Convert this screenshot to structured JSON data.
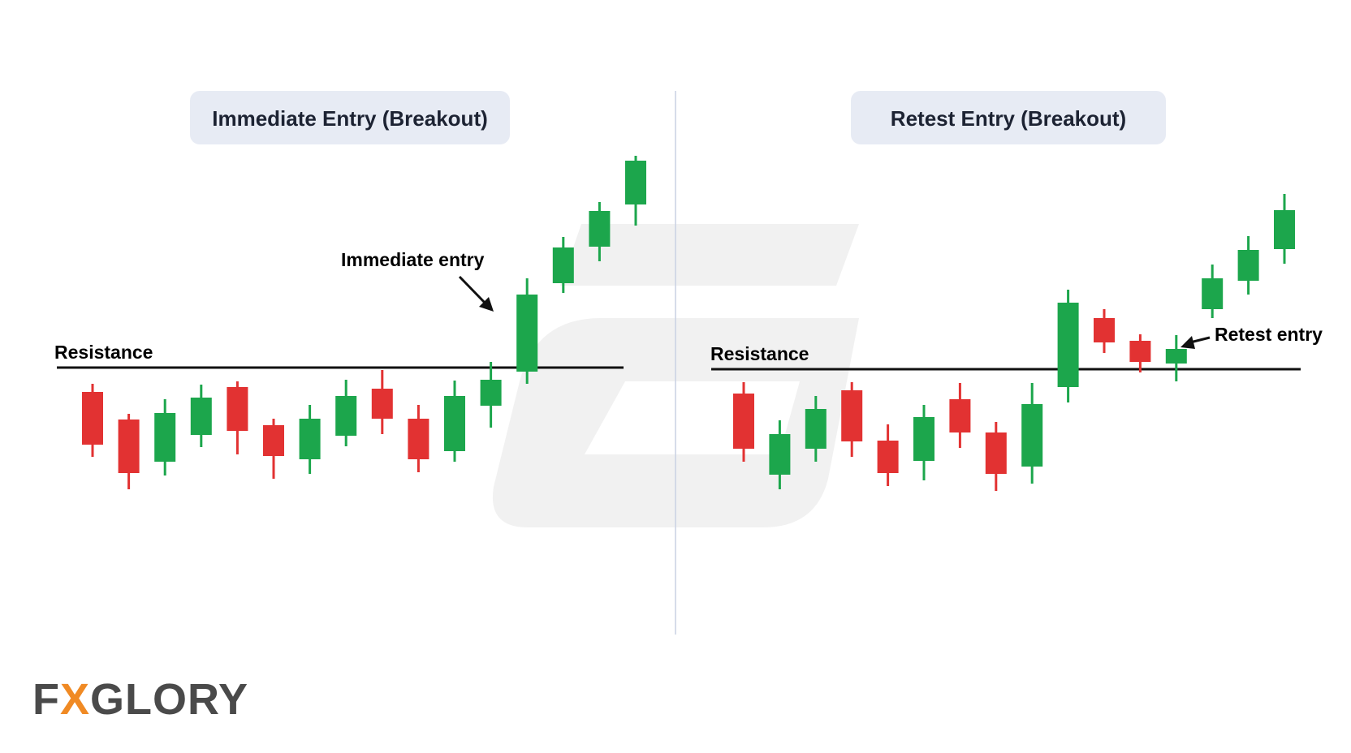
{
  "panels": [
    {
      "title": "Immediate Entry (Breakout)",
      "resistance_label": "Resistance",
      "entry_label": "Immediate entry",
      "candles": [
        {
          "dir": "down",
          "high": 480,
          "low": 390,
          "open": 470,
          "close": 405
        },
        {
          "dir": "down",
          "high": 443,
          "low": 350,
          "open": 436,
          "close": 370
        },
        {
          "dir": "up",
          "high": 461,
          "low": 367,
          "open": 384,
          "close": 444
        },
        {
          "dir": "up",
          "high": 479,
          "low": 402,
          "open": 417,
          "close": 463
        },
        {
          "dir": "down",
          "high": 483,
          "low": 393,
          "open": 476,
          "close": 422
        },
        {
          "dir": "down",
          "high": 437,
          "low": 363,
          "open": 429,
          "close": 391
        },
        {
          "dir": "up",
          "high": 454,
          "low": 369,
          "open": 387,
          "close": 437
        },
        {
          "dir": "up",
          "high": 485,
          "low": 403,
          "open": 416,
          "close": 465
        },
        {
          "dir": "down",
          "high": 497,
          "low": 418,
          "open": 474,
          "close": 437
        },
        {
          "dir": "down",
          "high": 454,
          "low": 371,
          "open": 437,
          "close": 387
        },
        {
          "dir": "up",
          "high": 484,
          "low": 384,
          "open": 397,
          "close": 465
        },
        {
          "dir": "up",
          "high": 507,
          "low": 426,
          "open": 453,
          "close": 485
        },
        {
          "dir": "up",
          "high": 610,
          "low": 480,
          "open": 495,
          "close": 590
        },
        {
          "dir": "up",
          "high": 661,
          "low": 592,
          "open": 604,
          "close": 648
        },
        {
          "dir": "up",
          "high": 704,
          "low": 631,
          "open": 649,
          "close": 693
        },
        {
          "dir": "up",
          "high": 761,
          "low": 675,
          "open": 701,
          "close": 755
        }
      ]
    },
    {
      "title": "Retest Entry (Breakout)",
      "resistance_label": "Resistance",
      "entry_label": "Retest entry",
      "candles": [
        {
          "dir": "down",
          "high": 484,
          "low": 386,
          "open": 470,
          "close": 402
        },
        {
          "dir": "up",
          "high": 437,
          "low": 352,
          "open": 370,
          "close": 420
        },
        {
          "dir": "up",
          "high": 467,
          "low": 386,
          "open": 402,
          "close": 451
        },
        {
          "dir": "down",
          "high": 484,
          "low": 392,
          "open": 474,
          "close": 411
        },
        {
          "dir": "down",
          "high": 432,
          "low": 356,
          "open": 412,
          "close": 372
        },
        {
          "dir": "up",
          "high": 456,
          "low": 363,
          "open": 387,
          "close": 441
        },
        {
          "dir": "down",
          "high": 483,
          "low": 403,
          "open": 463,
          "close": 422
        },
        {
          "dir": "down",
          "high": 435,
          "low": 350,
          "open": 422,
          "close": 371
        },
        {
          "dir": "up",
          "high": 483,
          "low": 359,
          "open": 380,
          "close": 457
        },
        {
          "dir": "up",
          "high": 598,
          "low": 459,
          "open": 478,
          "close": 582
        },
        {
          "dir": "down",
          "high": 574,
          "low": 520,
          "open": 563,
          "close": 533
        },
        {
          "dir": "down",
          "high": 543,
          "low": 496,
          "open": 535,
          "close": 509
        },
        {
          "dir": "up",
          "high": 542,
          "low": 485,
          "open": 507,
          "close": 525
        },
        {
          "dir": "up",
          "high": 629,
          "low": 563,
          "open": 574,
          "close": 612
        },
        {
          "dir": "up",
          "high": 664,
          "low": 592,
          "open": 609,
          "close": 647
        },
        {
          "dir": "up",
          "high": 716,
          "low": 630,
          "open": 648,
          "close": 696
        }
      ]
    }
  ],
  "resistance_level": 500,
  "logo": {
    "before": "F",
    "accent": "X",
    "after": "GLORY"
  },
  "colors": {
    "up": "#1ca64c",
    "down": "#e23232",
    "pill": "#e7ebf4",
    "title_text": "#1d2333",
    "divider": "#c9d1e3",
    "watermark": "#f1f1f1",
    "logo_text": "#4a4a4a",
    "logo_accent": "#f08a24"
  }
}
